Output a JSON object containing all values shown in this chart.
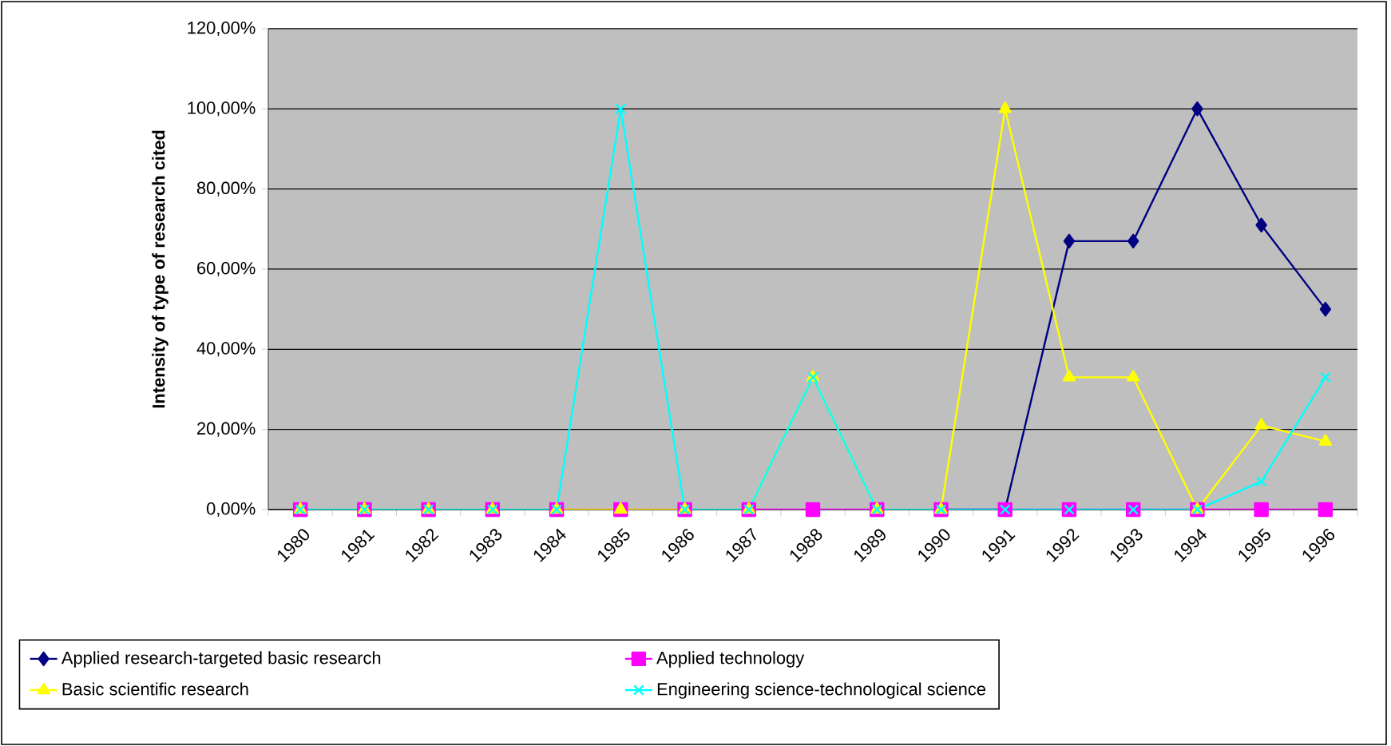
{
  "chart_data": {
    "type": "line",
    "ylabel": "Intensity of type of research cited",
    "categories": [
      "1980",
      "1981",
      "1982",
      "1983",
      "1984",
      "1985",
      "1986",
      "1987",
      "1988",
      "1989",
      "1990",
      "1991",
      "1992",
      "1993",
      "1994",
      "1995",
      "1996"
    ],
    "series": [
      {
        "name": "Applied research-targeted basic research",
        "color": "#000080",
        "marker": "diamond",
        "values": [
          null,
          null,
          null,
          null,
          null,
          null,
          null,
          null,
          null,
          null,
          0,
          0,
          67,
          67,
          100,
          71,
          50
        ]
      },
      {
        "name": "Applied technology",
        "color": "#ff00ff",
        "marker": "square",
        "values": [
          0,
          0,
          0,
          0,
          0,
          0,
          0,
          0,
          0,
          0,
          0,
          0,
          0,
          0,
          0,
          0,
          0
        ]
      },
      {
        "name": "Basic scientific research",
        "color": "#ffff00",
        "marker": "triangle",
        "values": [
          0,
          0,
          0,
          0,
          0,
          0,
          0,
          0,
          33,
          0,
          0,
          100,
          33,
          33,
          0,
          21,
          17
        ]
      },
      {
        "name": "Engineering science-technological science",
        "color": "#00ffff",
        "marker": "cross",
        "values": [
          0,
          0,
          0,
          0,
          0,
          100,
          0,
          0,
          33,
          0,
          0,
          0,
          0,
          0,
          0,
          7,
          33
        ]
      }
    ],
    "ylim": [
      0,
      120
    ],
    "yticks": [
      {
        "value": 0,
        "label": "0,00%"
      },
      {
        "value": 20,
        "label": "20,00%"
      },
      {
        "value": 40,
        "label": "40,00%"
      },
      {
        "value": 60,
        "label": "60,00%"
      },
      {
        "value": 80,
        "label": "80,00%"
      },
      {
        "value": 100,
        "label": "100,00%"
      },
      {
        "value": 120,
        "label": "120,00%"
      }
    ],
    "grid": "y",
    "legend": "bottom"
  }
}
